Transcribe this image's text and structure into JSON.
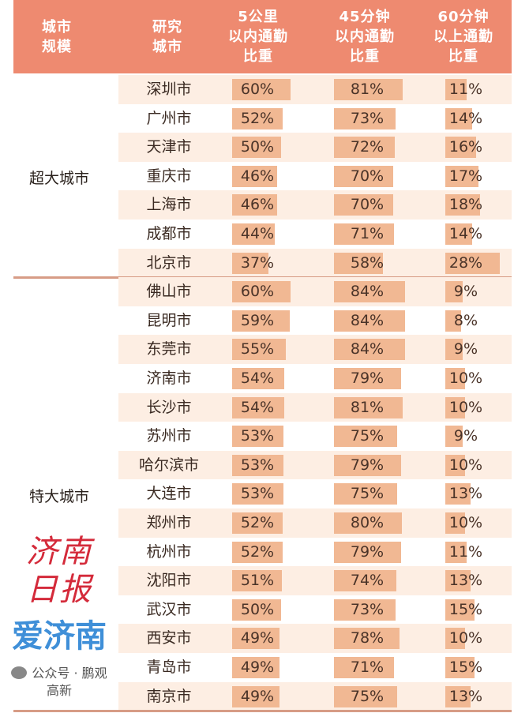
{
  "chart_data": {
    "type": "table",
    "headers": [
      "城市\n规模",
      "研究\n城市",
      "5公里\n以内通勤\n比重",
      "45分钟\n以内通勤\n比重",
      "60分钟\n以上通勤\n比重"
    ],
    "groups": [
      {
        "name": "超大城市",
        "rows": [
          {
            "city": "深圳市",
            "values": [
              60,
              81,
              11
            ]
          },
          {
            "city": "广州市",
            "values": [
              52,
              73,
              14
            ]
          },
          {
            "city": "天津市",
            "values": [
              50,
              72,
              16
            ]
          },
          {
            "city": "重庆市",
            "values": [
              46,
              70,
              17
            ]
          },
          {
            "city": "上海市",
            "values": [
              46,
              70,
              18
            ]
          },
          {
            "city": "成都市",
            "values": [
              44,
              71,
              14
            ]
          },
          {
            "city": "北京市",
            "values": [
              37,
              58,
              28
            ]
          }
        ]
      },
      {
        "name": "特大城市",
        "rows": [
          {
            "city": "佛山市",
            "values": [
              60,
              84,
              9
            ]
          },
          {
            "city": "昆明市",
            "values": [
              59,
              84,
              8
            ]
          },
          {
            "city": "东莞市",
            "values": [
              55,
              84,
              9
            ]
          },
          {
            "city": "济南市",
            "values": [
              54,
              79,
              10
            ]
          },
          {
            "city": "长沙市",
            "values": [
              54,
              81,
              10
            ]
          },
          {
            "city": "苏州市",
            "values": [
              53,
              75,
              9
            ]
          },
          {
            "city": "哈尔滨市",
            "values": [
              53,
              79,
              10
            ]
          },
          {
            "city": "大连市",
            "values": [
              53,
              75,
              13
            ]
          },
          {
            "city": "郑州市",
            "values": [
              52,
              80,
              10
            ]
          },
          {
            "city": "杭州市",
            "values": [
              52,
              79,
              11
            ]
          },
          {
            "city": "沈阳市",
            "values": [
              51,
              74,
              13
            ]
          },
          {
            "city": "武汉市",
            "values": [
              50,
              73,
              15
            ]
          },
          {
            "city": "西安市",
            "values": [
              49,
              78,
              10
            ]
          },
          {
            "city": "青岛市",
            "values": [
              49,
              71,
              15
            ]
          },
          {
            "city": "南京市",
            "values": [
              49,
              75,
              13
            ]
          }
        ]
      }
    ],
    "unit": "%"
  },
  "watermark": {
    "newspaper": "济南日报",
    "app": "爱济南",
    "account": "公众号 · 鹏观高新"
  },
  "colors": {
    "header": "#ee8a70",
    "bar": "#f1b893",
    "row_alt": "#fdeee3"
  }
}
